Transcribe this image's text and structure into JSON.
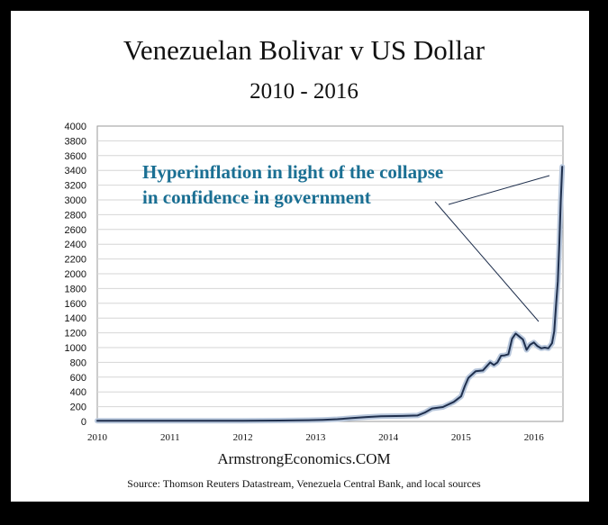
{
  "chart_data": {
    "type": "line",
    "title": "Venezuelan Bolivar v US Dollar",
    "subtitle": "2010 - 2016",
    "xlabel": "",
    "ylabel": "",
    "ylim": [
      0,
      4000
    ],
    "xlim": [
      2010,
      2016.4
    ],
    "yticks": [
      0,
      200,
      400,
      600,
      800,
      1000,
      1200,
      1400,
      1600,
      1800,
      2000,
      2200,
      2400,
      2600,
      2800,
      3000,
      3200,
      3400,
      3600,
      3800,
      4000
    ],
    "xticks": [
      "2010",
      "2011",
      "2012",
      "2013",
      "2014",
      "2015",
      "2016"
    ],
    "grid": true,
    "series": [
      {
        "points": [
          [
            2010.0,
            8
          ],
          [
            2010.5,
            8
          ],
          [
            2011.0,
            8
          ],
          [
            2011.5,
            9
          ],
          [
            2012.0,
            10
          ],
          [
            2012.5,
            12
          ],
          [
            2012.9,
            17
          ],
          [
            2013.1,
            22
          ],
          [
            2013.3,
            30
          ],
          [
            2013.5,
            45
          ],
          [
            2013.7,
            60
          ],
          [
            2013.9,
            70
          ],
          [
            2014.0,
            72
          ],
          [
            2014.2,
            75
          ],
          [
            2014.4,
            80
          ],
          [
            2014.5,
            120
          ],
          [
            2014.6,
            175
          ],
          [
            2014.75,
            195
          ],
          [
            2014.9,
            265
          ],
          [
            2015.0,
            340
          ],
          [
            2015.05,
            475
          ],
          [
            2015.1,
            590
          ],
          [
            2015.2,
            680
          ],
          [
            2015.3,
            690
          ],
          [
            2015.4,
            800
          ],
          [
            2015.45,
            765
          ],
          [
            2015.5,
            800
          ],
          [
            2015.55,
            890
          ],
          [
            2015.6,
            895
          ],
          [
            2015.65,
            910
          ],
          [
            2015.7,
            1120
          ],
          [
            2015.75,
            1190
          ],
          [
            2015.8,
            1150
          ],
          [
            2015.85,
            1110
          ],
          [
            2015.9,
            970
          ],
          [
            2015.95,
            1040
          ],
          [
            2016.0,
            1070
          ],
          [
            2016.05,
            1020
          ],
          [
            2016.1,
            990
          ],
          [
            2016.15,
            1000
          ],
          [
            2016.2,
            990
          ],
          [
            2016.25,
            1060
          ],
          [
            2016.28,
            1220
          ],
          [
            2016.31,
            1640
          ],
          [
            2016.33,
            1900
          ],
          [
            2016.35,
            2420
          ],
          [
            2016.37,
            3000
          ],
          [
            2016.39,
            3450
          ]
        ]
      }
    ],
    "annotation": {
      "lines": [
        "Hyperinflation in light of the collapse",
        "in confidence in government"
      ]
    }
  },
  "footer": {
    "brand": "ArmstrongEconomics.COM",
    "source": "Source: Thomson Reuters Datastream, Venezuela Central Bank, and local sources"
  },
  "colors": {
    "line": "#1f2f4d",
    "line_halo": "#b8c7dc",
    "annotation": "#1a6f93",
    "grid": "#d6d6d6"
  }
}
